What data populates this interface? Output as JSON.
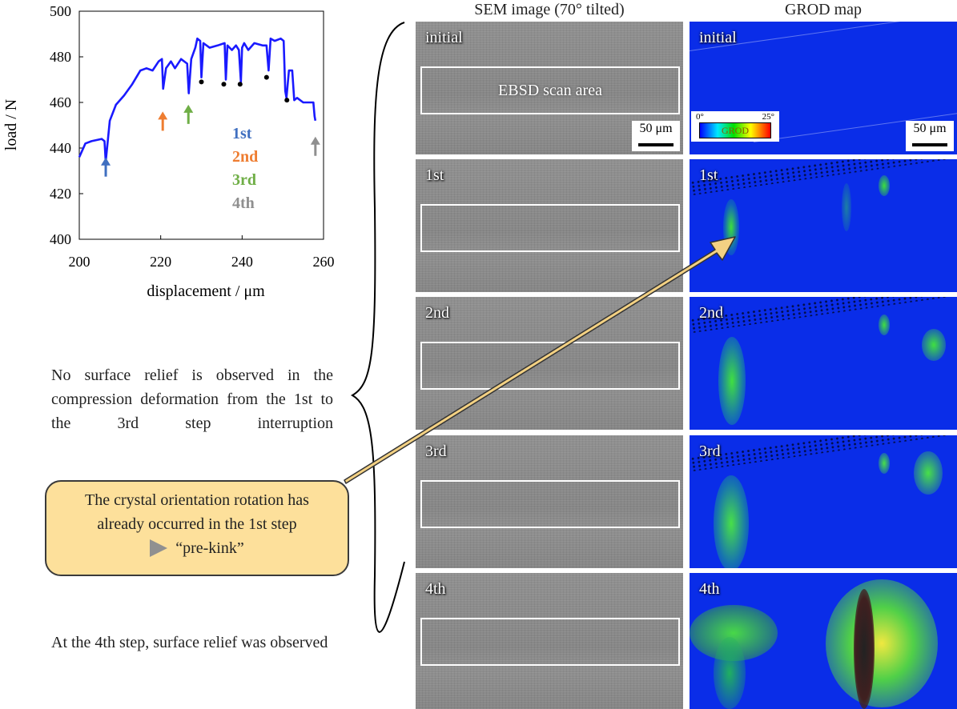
{
  "chart_data": {
    "type": "line",
    "xlabel": "displacement / μm",
    "ylabel": "load / N",
    "xlim": [
      200,
      260
    ],
    "ylim": [
      400,
      500
    ],
    "xticks": [
      "200",
      "220",
      "240",
      "260"
    ],
    "yticks": [
      "400",
      "420",
      "440",
      "460",
      "480",
      "500"
    ],
    "series": [
      {
        "color": "#1a1aff",
        "x": [
          200,
          201.5,
          203,
          205.5,
          206.2,
          206.5,
          207.5,
          209,
          211,
          213,
          215,
          216.5,
          218,
          219.5,
          220.3,
          220.6,
          221.3,
          222.5,
          223.5,
          225,
          226.5,
          226.9,
          227.5,
          228.5,
          229,
          229.7,
          230,
          230.5,
          232,
          234,
          235.7,
          236,
          236.4,
          237.5,
          238.5,
          239.2,
          239.7,
          240,
          240.5,
          241.5,
          243,
          245,
          246,
          246.5,
          247,
          248,
          249.5,
          250.2,
          250.6,
          250.9,
          251.5,
          252.3,
          252.8,
          253.5,
          255,
          256.5,
          257.5,
          257.8,
          258
        ],
        "y": [
          436,
          442,
          443,
          444,
          443,
          434,
          452,
          459,
          463,
          468,
          474,
          475,
          474,
          478,
          479,
          466,
          475,
          478,
          475,
          479,
          477,
          464,
          479,
          484,
          488,
          487,
          471,
          486,
          484,
          485,
          486,
          470,
          485,
          483,
          485,
          483,
          469,
          484,
          486,
          483,
          486,
          485,
          485,
          474,
          488,
          487,
          488,
          487,
          465,
          462,
          474,
          474,
          461,
          462,
          460,
          460,
          460,
          454,
          452
        ]
      }
    ],
    "points": {
      "x": [
        230,
        235.5,
        239.5,
        246,
        251
      ],
      "y": [
        469,
        468,
        468,
        471,
        461
      ],
      "color": "#000000"
    },
    "markers": [
      {
        "label": "1st",
        "x": 206.5,
        "color": "#3f6fc0"
      },
      {
        "label": "2nd",
        "x": 220.5,
        "color": "#ee7d31"
      },
      {
        "label": "3rd",
        "x": 226.8,
        "color": "#6fae46"
      },
      {
        "label": "4th",
        "x": 258,
        "color": "#8f8f8f"
      }
    ],
    "legend": {
      "placement": "center-right",
      "entries": [
        "1st",
        "2nd",
        "3rd",
        "4th"
      ]
    },
    "grid": false
  },
  "text": {
    "note_relief": "No surface relief is observed in the compression deformation from the 1st to the 3rd step interruption",
    "callout_line1": "The crystal orientation rotation has",
    "callout_line2": "already occurred in the 1st step",
    "callout_line3": "“pre-kink”",
    "note_fourth": "At the 4th step, surface relief was observed"
  },
  "headers": {
    "sem": "SEM image (70° tilted)",
    "grod": "GROD map"
  },
  "rows": [
    {
      "label": "initial"
    },
    {
      "label": "1st"
    },
    {
      "label": "2nd"
    },
    {
      "label": "3rd"
    },
    {
      "label": "4th"
    }
  ],
  "scan_label": "EBSD scan area",
  "scalebar": "50 μm",
  "grod_legend": {
    "min": "0°",
    "max": "25°",
    "label": "GROD"
  },
  "colors": {
    "curve": "#1a1aff",
    "callout_fill": "#fde09b",
    "callout_arrow": "#f3d183",
    "grod_background": "#0a2de8"
  }
}
